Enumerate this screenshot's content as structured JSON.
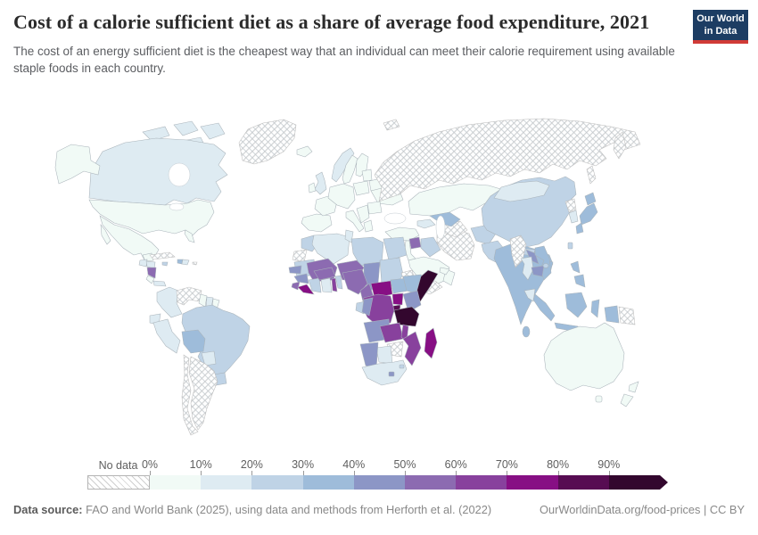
{
  "header": {
    "title": "Cost of a calorie sufficient diet as a share of average food expenditure, 2021",
    "subtitle": "The cost of an energy sufficient diet is the cheapest way that an individual can meet their calorie requirement using available staple foods in each country.",
    "logo": {
      "line1": "Our World",
      "line2": "in Data",
      "bg_color": "#1d3d63",
      "bar_color": "#d13b37"
    }
  },
  "footer": {
    "source_label": "Data source:",
    "source_text": " FAO and World Bank (2025), using data and methods from Herforth et al. (2022)",
    "link_text": "OurWorldinData.org/food-prices | CC BY"
  },
  "chart_data": {
    "type": "choropleth_map",
    "title": "Cost of a calorie sufficient diet as a share of average food expenditure, 2021",
    "unit": "% of average food expenditure",
    "legend": {
      "no_data_label": "No data",
      "tick_labels": [
        "0%",
        "10%",
        "20%",
        "30%",
        "40%",
        "50%",
        "60%",
        "70%",
        "80%",
        "90%"
      ],
      "bin_ranges": [
        "0-10%",
        "10-20%",
        "20-30%",
        "30-40%",
        "40-50%",
        "50-60%",
        "60-70%",
        "70-80%",
        "80-90%",
        "90%+"
      ],
      "colors": [
        "#f1faf6",
        "#deebf2",
        "#bfd3e6",
        "#9ebcda",
        "#8c96c6",
        "#8c6bb1",
        "#88419d",
        "#870f84",
        "#570c52",
        "#33072e"
      ],
      "no_data_pattern": "gray-diagonal-hatch"
    },
    "regions": [
      {
        "id": "greenland",
        "name": "Greenland",
        "bin": null
      },
      {
        "id": "canada",
        "name": "Canada",
        "bin": 1
      },
      {
        "id": "united-states",
        "name": "United States",
        "bin": 0
      },
      {
        "id": "mexico",
        "name": "Mexico",
        "bin": 0
      },
      {
        "id": "guatemala",
        "name": "Guatemala",
        "bin": 1
      },
      {
        "id": "honduras",
        "name": "Honduras",
        "bin": 1
      },
      {
        "id": "nicaragua",
        "name": "Nicaragua",
        "bin": 5
      },
      {
        "id": "costa-rica",
        "name": "Costa Rica",
        "bin": 0
      },
      {
        "id": "panama",
        "name": "Panama",
        "bin": 1
      },
      {
        "id": "cuba",
        "name": "Cuba",
        "bin": null
      },
      {
        "id": "jamaica",
        "name": "Jamaica",
        "bin": 2
      },
      {
        "id": "haiti",
        "name": "Haiti",
        "bin": 3
      },
      {
        "id": "dominican-republic",
        "name": "Dominican Republic",
        "bin": 1
      },
      {
        "id": "puerto-rico",
        "name": "Puerto Rico",
        "bin": null
      },
      {
        "id": "colombia",
        "name": "Colombia",
        "bin": 1
      },
      {
        "id": "venezuela",
        "name": "Venezuela",
        "bin": null
      },
      {
        "id": "guyana",
        "name": "Guyana",
        "bin": 0
      },
      {
        "id": "suriname",
        "name": "Suriname",
        "bin": 1
      },
      {
        "id": "french-guiana",
        "name": "French Guiana",
        "bin": 0
      },
      {
        "id": "ecuador",
        "name": "Ecuador",
        "bin": 1
      },
      {
        "id": "peru",
        "name": "Peru",
        "bin": 1
      },
      {
        "id": "brazil",
        "name": "Brazil",
        "bin": 2
      },
      {
        "id": "bolivia",
        "name": "Bolivia",
        "bin": 3
      },
      {
        "id": "paraguay",
        "name": "Paraguay",
        "bin": 1
      },
      {
        "id": "uruguay",
        "name": "Uruguay",
        "bin": 2
      },
      {
        "id": "argentina",
        "name": "Argentina",
        "bin": null
      },
      {
        "id": "chile",
        "name": "Chile",
        "bin": null
      },
      {
        "id": "iceland",
        "name": "Iceland",
        "bin": 0
      },
      {
        "id": "norway",
        "name": "Norway",
        "bin": 1
      },
      {
        "id": "sweden",
        "name": "Sweden",
        "bin": 0
      },
      {
        "id": "finland",
        "name": "Finland",
        "bin": 0
      },
      {
        "id": "united-kingdom",
        "name": "United Kingdom",
        "bin": 1
      },
      {
        "id": "ireland",
        "name": "Ireland",
        "bin": 0
      },
      {
        "id": "spain",
        "name": "Spain & Portugal",
        "bin": 0
      },
      {
        "id": "france",
        "name": "France",
        "bin": 0
      },
      {
        "id": "germany",
        "name": "Germany / Central Europe",
        "bin": 0
      },
      {
        "id": "italy",
        "name": "Italy",
        "bin": 0
      },
      {
        "id": "poland",
        "name": "Poland",
        "bin": 0
      },
      {
        "id": "baltics",
        "name": "Baltic states",
        "bin": 0
      },
      {
        "id": "belarus",
        "name": "Belarus",
        "bin": 0
      },
      {
        "id": "ukraine",
        "name": "Ukraine",
        "bin": 0
      },
      {
        "id": "romania",
        "name": "Romania",
        "bin": 0
      },
      {
        "id": "balkans",
        "name": "Balkans",
        "bin": 0
      },
      {
        "id": "greece",
        "name": "Greece",
        "bin": 0
      },
      {
        "id": "russia",
        "name": "Russia",
        "bin": null
      },
      {
        "id": "svalbard",
        "name": "Svalbard",
        "bin": null
      },
      {
        "id": "turkey",
        "name": "Turkey",
        "bin": 0
      },
      {
        "id": "caucasus",
        "name": "Caucasus",
        "bin": 1
      },
      {
        "id": "syria",
        "name": "Syria",
        "bin": 5
      },
      {
        "id": "jordan",
        "name": "Jordan / Israel",
        "bin": 0
      },
      {
        "id": "iraq",
        "name": "Iraq",
        "bin": 2
      },
      {
        "id": "iran",
        "name": "Iran",
        "bin": null
      },
      {
        "id": "saudi-arabia",
        "name": "Saudi Arabia",
        "bin": 0
      },
      {
        "id": "yemen",
        "name": "Yemen",
        "bin": null
      },
      {
        "id": "oman",
        "name": "Oman",
        "bin": 0
      },
      {
        "id": "uae",
        "name": "United Arab Emirates",
        "bin": 0
      },
      {
        "id": "turkmenistan",
        "name": "Turkmenistan",
        "bin": null
      },
      {
        "id": "uzbekistan",
        "name": "Uzbekistan",
        "bin": 3
      },
      {
        "id": "kazakhstan",
        "name": "Kazakhstan",
        "bin": 0
      },
      {
        "id": "kyrgyzstan",
        "name": "Kyrgyzstan",
        "bin": 1
      },
      {
        "id": "tajikistan",
        "name": "Tajikistan",
        "bin": 2
      },
      {
        "id": "afghanistan",
        "name": "Afghanistan",
        "bin": 2
      },
      {
        "id": "pakistan",
        "name": "Pakistan",
        "bin": 2
      },
      {
        "id": "india",
        "name": "India",
        "bin": 3
      },
      {
        "id": "nepal",
        "name": "Nepal",
        "bin": 2
      },
      {
        "id": "bangladesh",
        "name": "Bangladesh",
        "bin": 3
      },
      {
        "id": "sri-lanka",
        "name": "Sri Lanka",
        "bin": 3
      },
      {
        "id": "china",
        "name": "China",
        "bin": 2
      },
      {
        "id": "mongolia",
        "name": "Mongolia",
        "bin": 1
      },
      {
        "id": "north-korea",
        "name": "North Korea",
        "bin": null
      },
      {
        "id": "south-korea",
        "name": "South Korea",
        "bin": 1
      },
      {
        "id": "japan",
        "name": "Japan",
        "bin": 3
      },
      {
        "id": "myanmar",
        "name": "Myanmar",
        "bin": null
      },
      {
        "id": "thailand",
        "name": "Thailand",
        "bin": 1
      },
      {
        "id": "laos",
        "name": "Laos",
        "bin": 4
      },
      {
        "id": "cambodia",
        "name": "Cambodia",
        "bin": 4
      },
      {
        "id": "vietnam",
        "name": "Vietnam",
        "bin": 3
      },
      {
        "id": "malaysia",
        "name": "Malaysia",
        "bin": 1
      },
      {
        "id": "taiwan",
        "name": "Taiwan",
        "bin": 2
      },
      {
        "id": "philippines",
        "name": "Philippines",
        "bin": 3
      },
      {
        "id": "indonesia",
        "name": "Indonesia",
        "bin": 3
      },
      {
        "id": "papua-new-guinea",
        "name": "Papua New Guinea",
        "bin": null
      },
      {
        "id": "australia",
        "name": "Australia",
        "bin": 0
      },
      {
        "id": "new-zealand",
        "name": "New Zealand",
        "bin": 0
      },
      {
        "id": "morocco",
        "name": "Morocco",
        "bin": 2
      },
      {
        "id": "western-sahara",
        "name": "Western Sahara",
        "bin": null
      },
      {
        "id": "algeria",
        "name": "Algeria",
        "bin": 1
      },
      {
        "id": "tunisia",
        "name": "Tunisia",
        "bin": 1
      },
      {
        "id": "libya",
        "name": "Libya",
        "bin": 2
      },
      {
        "id": "egypt",
        "name": "Egypt",
        "bin": 2
      },
      {
        "id": "mauritania",
        "name": "Mauritania",
        "bin": 2
      },
      {
        "id": "mali",
        "name": "Mali",
        "bin": 5
      },
      {
        "id": "niger",
        "name": "Niger",
        "bin": 5
      },
      {
        "id": "chad",
        "name": "Chad",
        "bin": 4
      },
      {
        "id": "sudan",
        "name": "Sudan",
        "bin": 2
      },
      {
        "id": "eritrea",
        "name": "Eritrea",
        "bin": null
      },
      {
        "id": "senegal",
        "name": "Senegal",
        "bin": 4
      },
      {
        "id": "guinea",
        "name": "Guinea",
        "bin": 4
      },
      {
        "id": "sierra-leone",
        "name": "Sierra Leone",
        "bin": 5
      },
      {
        "id": "liberia",
        "name": "Liberia",
        "bin": 7
      },
      {
        "id": "cote-divoire",
        "name": "Cote d'Ivoire",
        "bin": 2
      },
      {
        "id": "ghana",
        "name": "Ghana",
        "bin": 1
      },
      {
        "id": "togo",
        "name": "Togo",
        "bin": 6
      },
      {
        "id": "benin",
        "name": "Benin",
        "bin": 2
      },
      {
        "id": "burkina-faso",
        "name": "Burkina Faso",
        "bin": 5
      },
      {
        "id": "nigeria",
        "name": "Nigeria",
        "bin": 5
      },
      {
        "id": "cameroon",
        "name": "Cameroon",
        "bin": 5
      },
      {
        "id": "central-african-republic",
        "name": "Central African Republic",
        "bin": 7
      },
      {
        "id": "south-sudan",
        "name": "South Sudan",
        "bin": 3
      },
      {
        "id": "ethiopia",
        "name": "Ethiopia",
        "bin": 3
      },
      {
        "id": "somalia",
        "name": "Somalia",
        "bin": 9
      },
      {
        "id": "kenya",
        "name": "Kenya",
        "bin": 4
      },
      {
        "id": "uganda",
        "name": "Uganda",
        "bin": 7
      },
      {
        "id": "rwanda-burundi",
        "name": "Rwanda / Burundi",
        "bin": 8
      },
      {
        "id": "drc",
        "name": "Democratic Republic of Congo",
        "bin": 6
      },
      {
        "id": "gabon",
        "name": "Gabon",
        "bin": 2
      },
      {
        "id": "congo",
        "name": "Congo",
        "bin": 4
      },
      {
        "id": "tanzania",
        "name": "Tanzania",
        "bin": 9
      },
      {
        "id": "angola",
        "name": "Angola",
        "bin": 4
      },
      {
        "id": "zambia",
        "name": "Zambia",
        "bin": 6
      },
      {
        "id": "malawi",
        "name": "Malawi",
        "bin": 6
      },
      {
        "id": "mozambique",
        "name": "Mozambique",
        "bin": 6
      },
      {
        "id": "madagascar",
        "name": "Madagascar",
        "bin": 7
      },
      {
        "id": "zimbabwe",
        "name": "Zimbabwe",
        "bin": null
      },
      {
        "id": "botswana",
        "name": "Botswana",
        "bin": 1
      },
      {
        "id": "namibia",
        "name": "Namibia",
        "bin": 4
      },
      {
        "id": "south-africa",
        "name": "South Africa",
        "bin": 1
      },
      {
        "id": "lesotho",
        "name": "Lesotho",
        "bin": 4
      },
      {
        "id": "eswatini",
        "name": "Eswatini",
        "bin": 2
      }
    ]
  }
}
